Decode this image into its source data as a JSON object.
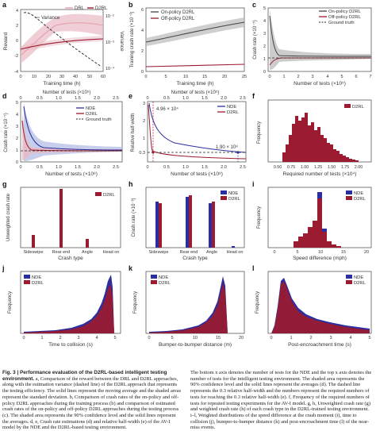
{
  "colors": {
    "red": "#9b1b30",
    "red_band": "#e8b9c3",
    "blue": "#2b2e9e",
    "blue_band": "#b9c2e6",
    "gray": "#555555",
    "black": "#222222"
  },
  "panels": {
    "a": {
      "letter": "a",
      "ylabel": "Reward",
      "xlabel": "Training time (h)",
      "y2label": "Variance",
      "legend": [
        "DRL",
        "D2RL"
      ],
      "annot": "Variance",
      "yticks": [
        "-4",
        "-2",
        "0",
        "2",
        "4"
      ],
      "y2ticks": [
        "10⁻²",
        "10⁻³",
        "10⁻⁴"
      ],
      "xticks": [
        "0",
        "10",
        "20",
        "30",
        "40",
        "50",
        "60"
      ]
    },
    "b": {
      "letter": "b",
      "ylabel": "Training crash rate (×10⁻³)",
      "xlabel": "Training time (h)",
      "legend": [
        "On-policy D2RL",
        "Off-policy D2RL"
      ],
      "yticks": [
        "0",
        "2",
        "4",
        "6"
      ],
      "xticks": [
        "0",
        "5",
        "10",
        "15",
        "20",
        "25"
      ]
    },
    "c": {
      "letter": "c",
      "ylabel": "Crash rate (×10⁻⁵)",
      "xlabel": "Number of tests (×10⁵)",
      "legend": [
        "On-policy D2RL",
        "Off-policy D2RL",
        "Ground truth"
      ],
      "yticks": [
        "0",
        "1",
        "2",
        "3",
        "4",
        "5"
      ],
      "xticks": [
        "0",
        "1",
        "2",
        "3",
        "4",
        "5",
        "6",
        "7"
      ]
    },
    "d": {
      "letter": "d",
      "ylabel": "Crash rate (×10⁻⁵)",
      "xlabel": "Number of tests (×10⁸)",
      "toplabel": "Number of tests (×10⁵)",
      "legend": [
        "NDE",
        "D2RL",
        "Ground truth"
      ],
      "yticks": [
        "0",
        "1",
        "2",
        "3",
        "4",
        "5"
      ],
      "xticks": [
        "0",
        "0.5",
        "1.0",
        "1.5",
        "2.0",
        "2.5"
      ],
      "topticks": [
        "0",
        "0.5",
        "1.0",
        "1.5",
        "2.0",
        "2.5"
      ]
    },
    "e": {
      "letter": "e",
      "ylabel": "Relative half-width",
      "xlabel": "Number of tests (×10⁸)",
      "toplabel": "Number of tests (×10⁵)",
      "legend": [
        "NDE",
        "D2RL"
      ],
      "annot1": "4.96 × 10⁴",
      "annot2": "1.90 × 10⁸",
      "yticks": [
        "0.3",
        "1",
        "2",
        "3"
      ],
      "xticks": [
        "0",
        "0.5",
        "1.0",
        "1.5",
        "2.0",
        "2.5"
      ],
      "topticks": [
        "0",
        "0.5",
        "1.0",
        "1.5",
        "2.0",
        "2.5"
      ]
    },
    "f": {
      "letter": "f",
      "ylabel": "Frequency",
      "xlabel": "Required number of tests (×10⁴)",
      "legend": [
        "D2RL"
      ],
      "xticks": [
        "0.50",
        "0.75",
        "1.00",
        "1.25",
        "1.50",
        "1.75",
        "2.00"
      ]
    },
    "g": {
      "letter": "g",
      "ylabel": "Unweighted crash rate",
      "xlabel": "Crash type",
      "legend": [
        "D2RL"
      ],
      "categories": [
        "Sideswipe",
        "Rear end",
        "Angle",
        "Head on"
      ]
    },
    "h": {
      "letter": "h",
      "ylabel": "Crash rate (×10⁻³)",
      "xlabel": "Crash type",
      "legend": [
        "NDE",
        "D2RL"
      ],
      "categories": [
        "Sideswipe",
        "Rear end",
        "Angle",
        "Head on"
      ]
    },
    "i": {
      "letter": "i",
      "ylabel": "Frequency",
      "xlabel": "Speed difference (mph)",
      "legend": [
        "NDE",
        "D2RL"
      ],
      "xticks": [
        "0",
        "5",
        "10",
        "15",
        "20"
      ]
    },
    "j": {
      "letter": "j",
      "ylabel": "Frequency",
      "xlabel": "Time to collision (s)",
      "legend": [
        "NDE",
        "D2RL"
      ],
      "xticks": [
        "0",
        "1",
        "2",
        "3",
        "4",
        "5"
      ]
    },
    "k": {
      "letter": "k",
      "ylabel": "Frequency",
      "xlabel": "Bumper-to-bumper distance (m)",
      "legend": [
        "NDE",
        "D2RL"
      ],
      "xticks": [
        "0",
        "5",
        "10",
        "15",
        "20"
      ]
    },
    "l": {
      "letter": "l",
      "ylabel": "Frequency",
      "xlabel": "Post-encroachment time (s)",
      "legend": [
        "NDE",
        "D2RL"
      ],
      "xticks": [
        "0",
        "1",
        "2",
        "3",
        "4",
        "5"
      ]
    }
  },
  "caption": {
    "heading": "Fig. 3 | Performance evaluation of the D2RL-based intelligent testing environment.",
    "left": "a, Comparison of the reward between the DRL and D2RL approaches, along with the estimation variance (dashed line) of the D2RL approach that represents the testing efficiency. The solid lines represent the moving average and the shaded areas represent the standard deviation. b, Comparison of crash rates of the on-policy and off-policy D2RL approaches during the training process (b) and comparison of estimated crash rates of the on-policy and off-policy D2RL approaches during the testing process (c). The shaded area represents the 90% confidence level and the solid lines represent the averages. d, e, Crash rate estimations (d) and relative half-width (e) of the AV-I model by the NDE and the D2RL-based testing environment.",
    "right": "The bottom x axis denotes the number of tests for the NDE and the top x axis denotes the number of tests for the intelligent testing environment. The shaded area represents the 90% confidence level and the solid lines represent the averages (d). The dashed line represents the 0.3 relative half-width and the numbers represent the required numbers of tests for reaching the 0.3 relative half-width (e). f, Frequency of the required numbers of tests for repeated testing experiments for the AV-I model. g, h, Unweighted crash rate (g) and weighted crash rate (h) of each crash type in the D2RL-trained testing environment. i–l, Weighted distributions of the speed difference at the crash moment (i), time to collision (j), bumper-to-bumper distance (k) and post-encroachment time (l) of the near-miss events."
  }
}
